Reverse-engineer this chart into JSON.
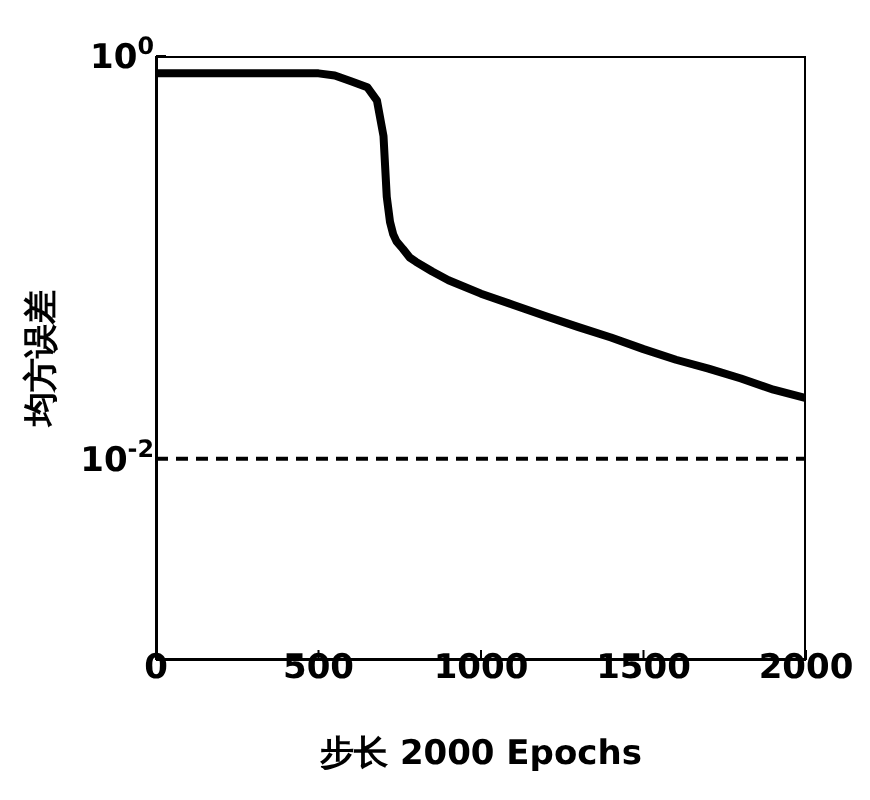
{
  "chart_data": {
    "type": "line",
    "xlabel": "步长 2000 Epochs",
    "ylabel": "均方误差",
    "log": "y",
    "x": [
      0,
      100,
      200,
      300,
      400,
      500,
      550,
      600,
      650,
      680,
      700,
      710,
      720,
      730,
      740,
      760,
      780,
      800,
      850,
      900,
      1000,
      1100,
      1200,
      1300,
      1400,
      1500,
      1600,
      1700,
      1800,
      1900,
      2000
    ],
    "series": [
      {
        "color": "#000000",
        "values": [
          0.82,
          0.82,
          0.82,
          0.82,
          0.82,
          0.82,
          0.8,
          0.75,
          0.7,
          0.6,
          0.4,
          0.2,
          0.15,
          0.13,
          0.12,
          0.11,
          0.1,
          0.095,
          0.085,
          0.077,
          0.066,
          0.058,
          0.051,
          0.045,
          0.04,
          0.035,
          0.031,
          0.028,
          0.025,
          0.022,
          0.02
        ]
      }
    ],
    "xlim": [
      0,
      2000
    ],
    "xticks": [
      0,
      500,
      1000,
      1500,
      2000
    ],
    "ylim": [
      0.001,
      1
    ],
    "yticks": [
      {
        "value": 1,
        "label": "10$^{0}$"
      },
      {
        "value": 0.01,
        "label": "10$^{-2}$"
      }
    ],
    "ref_lines": [
      {
        "axis": "y",
        "value": 0.01,
        "color": "#000000",
        "line_style": "dashed"
      }
    ],
    "marker": "none",
    "line_style": "solid"
  }
}
